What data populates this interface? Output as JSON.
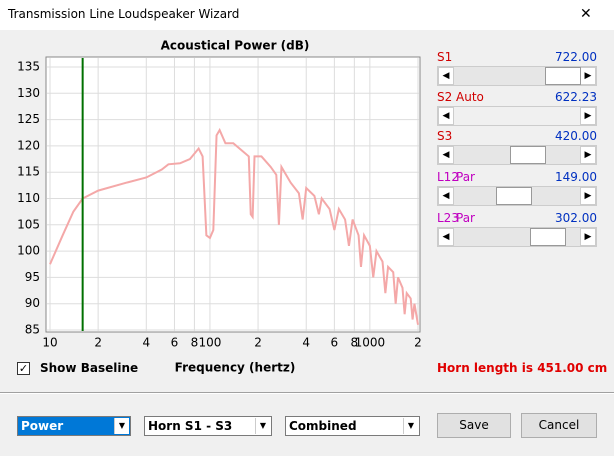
{
  "window": {
    "title": "Transmission Line Loudspeaker Wizard",
    "close": "✕"
  },
  "chart_data": {
    "type": "line",
    "title": "Acoustical Power (dB)",
    "x_label": "Frequency (hertz)",
    "log_x": true,
    "xlim": [
      10,
      2000
    ],
    "ylim": [
      85,
      135
    ],
    "xticks": [
      10,
      {
        "value": 20,
        "label": "2"
      },
      {
        "value": 40,
        "label": "4"
      },
      {
        "value": 60,
        "label": "6"
      },
      {
        "value": 80,
        "label": "8"
      },
      100,
      {
        "value": 200,
        "label": "2"
      },
      {
        "value": 400,
        "label": "4"
      },
      {
        "value": 600,
        "label": "6"
      },
      {
        "value": 800,
        "label": "8"
      },
      1000,
      {
        "value": 2000,
        "label": "2"
      }
    ],
    "yticks": [
      85,
      90,
      95,
      100,
      105,
      110,
      115,
      120,
      125,
      130,
      135
    ],
    "grid": true,
    "baseline_x": 16,
    "baseline_color": "#007000",
    "x": [
      10,
      12,
      14,
      16,
      20,
      30,
      40,
      50,
      55,
      65,
      75,
      85,
      90,
      95,
      100,
      105,
      110,
      115,
      125,
      140,
      160,
      175,
      180,
      185,
      190,
      210,
      240,
      260,
      270,
      280,
      320,
      360,
      380,
      400,
      450,
      480,
      500,
      560,
      600,
      640,
      700,
      740,
      780,
      850,
      880,
      920,
      1000,
      1050,
      1100,
      1200,
      1250,
      1300,
      1400,
      1450,
      1500,
      1600,
      1650,
      1700,
      1800,
      1850,
      1900,
      2000
    ],
    "series": [
      {
        "color": "#f4a8a8",
        "values": [
          97.5,
          103,
          107.5,
          110,
          111.5,
          113,
          114,
          115.5,
          116.5,
          116.7,
          117.5,
          119.5,
          118,
          103,
          102.5,
          104,
          122,
          123,
          120.5,
          120.5,
          119,
          118,
          107,
          106.5,
          118,
          118,
          116,
          114.5,
          105,
          116,
          113,
          111,
          106,
          112,
          110.5,
          107,
          110,
          108,
          104,
          108,
          106,
          101,
          106,
          103,
          97,
          103,
          101,
          95,
          100,
          98,
          92,
          97,
          96,
          90,
          95,
          93,
          88,
          92,
          91,
          87,
          90,
          86
        ]
      }
    ]
  },
  "sliders": [
    {
      "label": "S1",
      "value": "722.00"
    },
    {
      "label": "S2",
      "extra": "Auto",
      "value": "622.23"
    },
    {
      "label": "S3",
      "value": "420.00"
    },
    {
      "label": "L12",
      "extra": "Par",
      "value": "149.00"
    },
    {
      "label": "L23",
      "extra": "Par",
      "value": "302.00"
    }
  ],
  "show_baseline": {
    "label": "Show Baseline",
    "checked": true
  },
  "horn_length": "Horn length is 451.00 cm",
  "dropdowns": [
    "Power",
    "Horn S1 - S3",
    "Combined"
  ],
  "buttons": [
    "Save",
    "Cancel"
  ]
}
